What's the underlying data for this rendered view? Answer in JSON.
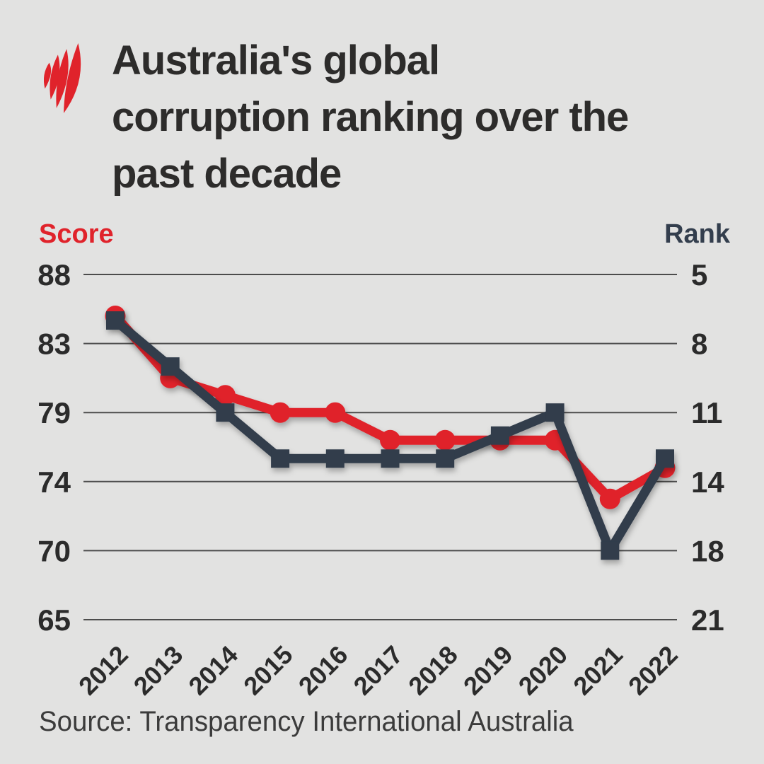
{
  "brand": {
    "logo_color": "#e0232b",
    "navy": "#303c4b",
    "red": "#e0232b",
    "background": "#e2e2e1"
  },
  "header": {
    "title": "Australia's global corruption ranking over the past decade",
    "title_lines": [
      "Australia's global",
      "corruption ranking over the",
      "past decade"
    ]
  },
  "chart_data": {
    "type": "line",
    "x": [
      2012,
      2013,
      2014,
      2015,
      2016,
      2017,
      2018,
      2019,
      2020,
      2021,
      2022
    ],
    "series": [
      {
        "name": "Score",
        "axis": "left",
        "color": "#e0232b",
        "marker": "circle",
        "values": [
          85,
          81,
          80,
          79,
          79,
          77,
          77,
          77,
          77,
          73,
          75
        ]
      },
      {
        "name": "Rank",
        "axis": "right",
        "color": "#303c4b",
        "marker": "square",
        "values": [
          7,
          9,
          11,
          13,
          13,
          13,
          13,
          12,
          11,
          18,
          13
        ]
      }
    ],
    "left_axis": {
      "title": "Score",
      "ticks": [
        88,
        83,
        79,
        74,
        70,
        65
      ]
    },
    "right_axis": {
      "title": "Rank",
      "ticks": [
        5,
        8,
        11,
        14,
        18,
        21
      ]
    },
    "grid": true,
    "legend_position": "axis-titles-top"
  },
  "footer": {
    "source": "Source: Transparency International Australia"
  }
}
